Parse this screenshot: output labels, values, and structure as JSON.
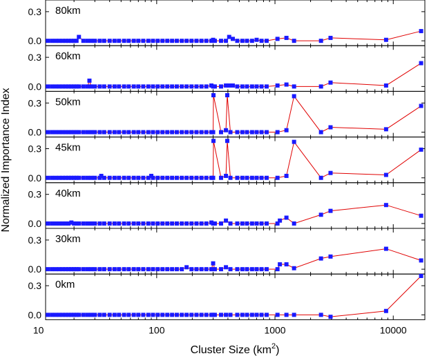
{
  "chart_data": {
    "type": "line",
    "xlabel": "Cluster Size (km",
    "xlabel_superscript": "2",
    "xlabel_suffix": ")",
    "ylabel": "Normalized Importance Index",
    "x_scale": "log",
    "xlim": [
      11.5,
      18500
    ],
    "ylim": [
      -0.05,
      0.42
    ],
    "x_ticks": [
      10,
      100,
      1000,
      10000
    ],
    "x_tick_labels": [
      "10",
      "100",
      "1000",
      "10000"
    ],
    "y_ticks": [
      0.0,
      0.3
    ],
    "y_tick_labels": [
      "0.0",
      "0.3"
    ],
    "grid": false,
    "line_color": "#e00000",
    "marker_color": "#1a1aff",
    "panels": [
      {
        "name": "80km",
        "x": [
          12,
          13,
          14,
          15,
          16,
          17,
          18,
          19,
          20,
          21,
          22,
          24,
          26,
          28,
          30,
          33,
          36,
          40,
          44,
          48,
          53,
          58,
          64,
          70,
          77,
          85,
          93,
          102,
          112,
          123,
          135,
          148,
          163,
          179,
          197,
          217,
          239,
          263,
          290,
          300,
          310,
          350,
          385,
          410,
          440,
          480,
          530,
          580,
          640,
          700,
          770,
          850,
          1050,
          1250,
          1450,
          2450,
          2950,
          8700,
          17200
        ],
        "y": [
          0.0,
          0.0,
          0.0,
          0.0,
          0.0,
          0.0,
          0.0,
          0.0,
          0.0,
          0.0,
          0.04,
          0.0,
          0.0,
          0.0,
          0.0,
          0.0,
          0.0,
          0.0,
          0.0,
          0.0,
          0.0,
          0.0,
          0.0,
          0.0,
          0.0,
          0.0,
          0.0,
          0.0,
          0.0,
          0.0,
          0.0,
          0.0,
          0.0,
          0.0,
          0.0,
          0.0,
          0.0,
          0.0,
          0.0,
          0.01,
          0.0,
          0.0,
          0.0,
          0.04,
          0.02,
          0.0,
          0.0,
          0.0,
          0.0,
          0.01,
          0.0,
          0.0,
          0.02,
          0.03,
          0.0,
          0.0,
          0.03,
          0.01,
          0.1
        ]
      },
      {
        "name": "60km",
        "x": [
          12,
          13,
          14,
          15,
          16,
          17,
          18,
          19,
          20,
          21,
          22,
          24,
          26,
          27,
          28,
          30,
          33,
          36,
          40,
          44,
          48,
          53,
          58,
          64,
          70,
          77,
          85,
          93,
          102,
          112,
          123,
          135,
          148,
          163,
          179,
          197,
          217,
          239,
          263,
          290,
          300,
          310,
          350,
          385,
          410,
          440,
          480,
          530,
          580,
          640,
          700,
          770,
          850,
          1050,
          1250,
          1450,
          2450,
          2950,
          8700,
          17200
        ],
        "y": [
          0.0,
          0.0,
          0.0,
          0.0,
          0.0,
          0.0,
          0.0,
          0.0,
          0.0,
          0.0,
          0.0,
          0.0,
          0.0,
          0.06,
          0.0,
          0.0,
          0.0,
          0.0,
          0.0,
          0.0,
          0.0,
          0.0,
          0.0,
          0.0,
          0.0,
          0.0,
          0.0,
          0.0,
          0.0,
          0.0,
          0.0,
          0.0,
          0.0,
          0.0,
          0.0,
          0.0,
          0.0,
          0.0,
          0.0,
          0.01,
          0.0,
          0.0,
          0.0,
          0.01,
          0.01,
          0.01,
          0.0,
          0.0,
          0.0,
          0.0,
          0.0,
          0.0,
          0.0,
          0.01,
          0.02,
          0.0,
          0.0,
          0.04,
          0.01,
          0.24
        ]
      },
      {
        "name": "50km",
        "x": [
          12,
          13,
          14,
          15,
          16,
          17,
          18,
          19,
          20,
          21,
          22,
          24,
          26,
          28,
          30,
          33,
          36,
          40,
          44,
          48,
          53,
          58,
          64,
          70,
          77,
          85,
          93,
          102,
          112,
          123,
          135,
          148,
          163,
          179,
          197,
          217,
          239,
          263,
          290,
          300,
          302,
          350,
          385,
          395,
          420,
          480,
          530,
          580,
          640,
          700,
          770,
          850,
          1050,
          1250,
          1450,
          2450,
          2950,
          8700,
          17200
        ],
        "y": [
          0.0,
          0.0,
          0.0,
          0.0,
          0.0,
          0.0,
          0.0,
          0.0,
          0.0,
          0.0,
          0.0,
          0.0,
          0.0,
          0.0,
          0.0,
          0.0,
          0.0,
          0.0,
          0.0,
          0.0,
          0.0,
          0.0,
          0.0,
          0.0,
          0.0,
          0.0,
          0.0,
          0.0,
          0.0,
          0.0,
          0.0,
          0.0,
          0.0,
          0.0,
          0.0,
          0.0,
          0.0,
          0.0,
          0.0,
          0.0,
          0.38,
          0.0,
          0.02,
          0.38,
          0.0,
          0.0,
          0.0,
          0.0,
          0.0,
          0.0,
          0.0,
          0.0,
          0.0,
          0.02,
          0.37,
          0.0,
          0.05,
          0.03,
          0.27
        ]
      },
      {
        "name": "45km",
        "x": [
          12,
          13,
          14,
          15,
          16,
          17,
          18,
          19,
          20,
          21,
          22,
          24,
          26,
          28,
          30,
          33,
          34,
          36,
          40,
          44,
          48,
          53,
          58,
          64,
          70,
          77,
          85,
          90,
          93,
          102,
          112,
          123,
          135,
          148,
          163,
          179,
          197,
          217,
          239,
          263,
          290,
          300,
          302,
          350,
          385,
          395,
          420,
          480,
          530,
          580,
          640,
          700,
          770,
          850,
          1050,
          1250,
          1450,
          2450,
          2950,
          8700,
          17200
        ],
        "y": [
          0.0,
          0.0,
          0.0,
          0.0,
          0.0,
          0.0,
          0.0,
          0.0,
          0.0,
          0.0,
          0.0,
          0.0,
          0.0,
          0.0,
          0.0,
          0.0,
          0.02,
          0.0,
          0.0,
          0.0,
          0.0,
          0.0,
          0.0,
          0.0,
          0.0,
          0.0,
          0.0,
          0.02,
          0.0,
          0.0,
          0.0,
          0.0,
          0.0,
          0.0,
          0.0,
          0.0,
          0.0,
          0.0,
          0.0,
          0.0,
          0.0,
          0.0,
          0.38,
          0.0,
          0.02,
          0.38,
          0.0,
          0.0,
          0.0,
          0.0,
          0.0,
          0.0,
          0.0,
          0.0,
          0.0,
          0.02,
          0.37,
          0.0,
          0.05,
          0.03,
          0.29
        ]
      },
      {
        "name": "40km",
        "x": [
          12,
          13,
          14,
          15,
          16,
          17,
          18,
          19,
          20,
          21,
          22,
          24,
          26,
          28,
          30,
          33,
          36,
          40,
          44,
          48,
          53,
          58,
          64,
          70,
          77,
          85,
          93,
          102,
          112,
          123,
          135,
          148,
          163,
          179,
          197,
          217,
          239,
          263,
          290,
          300,
          310,
          350,
          385,
          420,
          480,
          530,
          580,
          640,
          700,
          770,
          850,
          1050,
          1100,
          1250,
          1450,
          2450,
          2950,
          8700,
          17200
        ],
        "y": [
          0.0,
          0.0,
          0.0,
          0.0,
          0.0,
          0.0,
          0.0,
          0.01,
          0.0,
          0.0,
          0.0,
          0.0,
          0.0,
          0.0,
          0.0,
          0.0,
          0.0,
          0.0,
          0.0,
          0.0,
          0.0,
          0.0,
          0.0,
          0.0,
          0.0,
          0.0,
          0.0,
          0.0,
          0.0,
          0.0,
          0.0,
          0.0,
          0.0,
          0.0,
          0.0,
          0.0,
          0.0,
          0.0,
          0.01,
          0.0,
          0.0,
          0.0,
          0.03,
          0.0,
          0.0,
          0.0,
          0.0,
          0.0,
          0.0,
          0.0,
          0.0,
          0.0,
          0.03,
          0.06,
          0.0,
          0.09,
          0.13,
          0.19,
          0.08
        ]
      },
      {
        "name": "30km",
        "x": [
          12,
          13,
          14,
          15,
          16,
          17,
          18,
          19,
          20,
          21,
          22,
          24,
          26,
          28,
          30,
          33,
          36,
          40,
          44,
          48,
          53,
          58,
          64,
          70,
          77,
          85,
          93,
          102,
          112,
          123,
          135,
          148,
          163,
          179,
          197,
          217,
          239,
          263,
          290,
          300,
          310,
          350,
          385,
          420,
          480,
          530,
          580,
          640,
          700,
          770,
          850,
          1050,
          1100,
          1250,
          1450,
          2450,
          2950,
          8700,
          17200
        ],
        "y": [
          0.0,
          0.0,
          0.0,
          0.0,
          0.0,
          0.0,
          0.0,
          0.0,
          0.0,
          0.0,
          0.0,
          0.0,
          0.0,
          0.0,
          0.0,
          0.0,
          0.0,
          0.0,
          0.0,
          0.0,
          0.0,
          0.0,
          0.0,
          0.0,
          0.0,
          0.0,
          0.0,
          0.0,
          0.0,
          0.0,
          0.0,
          0.0,
          0.0,
          0.02,
          0.0,
          0.0,
          0.0,
          0.0,
          0.0,
          0.06,
          0.0,
          0.0,
          0.02,
          0.0,
          0.0,
          0.0,
          0.0,
          0.0,
          0.0,
          0.0,
          0.0,
          0.0,
          0.05,
          0.05,
          0.01,
          0.11,
          0.13,
          0.21,
          0.09
        ]
      },
      {
        "name": "0km",
        "x": [
          12,
          13,
          14,
          15,
          16,
          17,
          18,
          19,
          20,
          21,
          22,
          24,
          26,
          28,
          30,
          33,
          36,
          40,
          44,
          48,
          53,
          58,
          64,
          70,
          77,
          85,
          93,
          102,
          112,
          123,
          135,
          148,
          163,
          179,
          197,
          217,
          239,
          263,
          290,
          300,
          310,
          350,
          385,
          420,
          480,
          530,
          580,
          640,
          700,
          770,
          850,
          1050,
          1250,
          1450,
          2450,
          2950,
          8700,
          17200
        ],
        "y": [
          0.0,
          0.0,
          0.0,
          0.0,
          0.0,
          0.0,
          0.0,
          0.0,
          0.0,
          0.0,
          0.0,
          0.0,
          0.0,
          0.0,
          0.0,
          0.0,
          0.0,
          0.0,
          0.0,
          0.0,
          0.0,
          0.0,
          0.0,
          0.0,
          0.0,
          0.0,
          0.0,
          0.0,
          0.0,
          0.0,
          0.0,
          0.0,
          0.0,
          0.0,
          0.0,
          0.0,
          0.0,
          0.0,
          0.0,
          0.0,
          0.0,
          0.0,
          0.0,
          0.0,
          0.0,
          0.0,
          0.0,
          0.0,
          0.0,
          0.0,
          0.0,
          0.0,
          0.0,
          0.0,
          0.0,
          -0.02,
          0.04,
          0.4
        ]
      }
    ]
  }
}
